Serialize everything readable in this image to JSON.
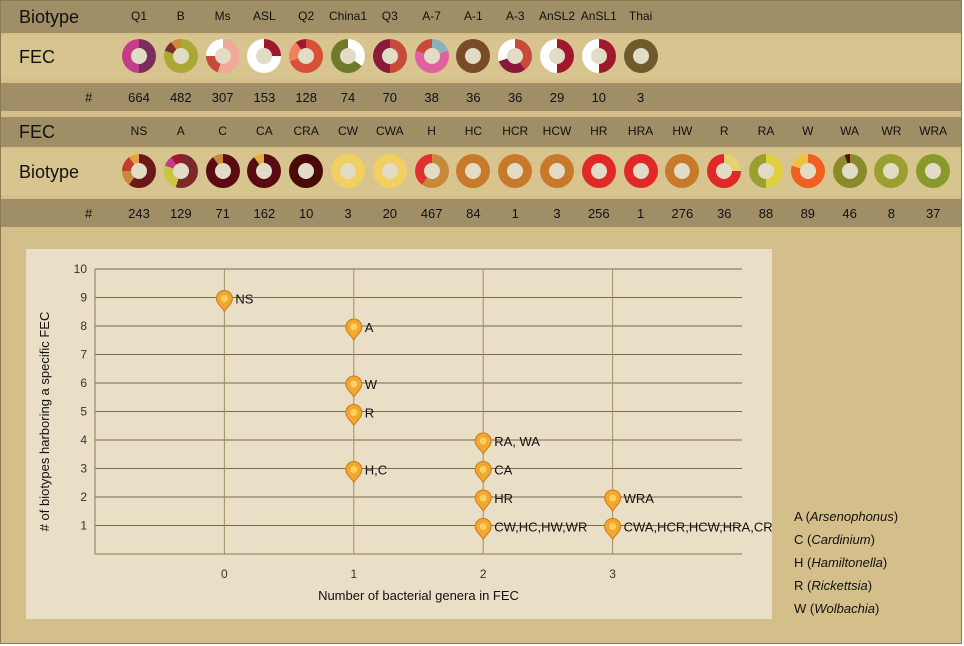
{
  "top_table": {
    "header_label": "Biotype",
    "row_label": "FEC",
    "count_symbol": "#",
    "columns": [
      {
        "label": "Q1",
        "count": "664",
        "segments": [
          [
            "#7a2d5a",
            0.5
          ],
          [
            "#c43d8a",
            0.5
          ]
        ]
      },
      {
        "label": "B",
        "count": "482",
        "segments": [
          [
            "#aaa832",
            0.8
          ],
          [
            "#7a2d2d",
            0.1
          ],
          [
            "#c98a3a",
            0.1
          ]
        ]
      },
      {
        "label": "Ms",
        "count": "307",
        "segments": [
          [
            "#f0a898",
            0.55
          ],
          [
            "#c84a3a",
            0.2
          ],
          [
            "#ffffff",
            0.25
          ]
        ]
      },
      {
        "label": "ASL",
        "count": "153",
        "segments": [
          [
            "#a0182e",
            0.25
          ],
          [
            "#ffffff",
            0.75
          ]
        ]
      },
      {
        "label": "Q2",
        "count": "128",
        "segments": [
          [
            "#d8503a",
            0.7
          ],
          [
            "#f08060",
            0.2
          ],
          [
            "#a0182e",
            0.1
          ]
        ]
      },
      {
        "label": "China1",
        "count": "74",
        "segments": [
          [
            "#ffffff",
            0.35
          ],
          [
            "#6e7a2a",
            0.65
          ]
        ]
      },
      {
        "label": "Q3",
        "count": "70",
        "segments": [
          [
            "#c84a3a",
            0.5
          ],
          [
            "#8a1a3a",
            0.5
          ]
        ]
      },
      {
        "label": "A-7",
        "count": "38",
        "segments": [
          [
            "#8ab0b8",
            0.2
          ],
          [
            "#e060a0",
            0.6
          ],
          [
            "#c84a3a",
            0.2
          ]
        ]
      },
      {
        "label": "A-1",
        "count": "36",
        "segments": [
          [
            "#7a4a2a",
            1.0
          ]
        ]
      },
      {
        "label": "A-3",
        "count": "36",
        "segments": [
          [
            "#c84a3a",
            0.4
          ],
          [
            "#8a1a3a",
            0.3
          ],
          [
            "#ffffff",
            0.3
          ]
        ]
      },
      {
        "label": "AnSL2",
        "count": "29",
        "segments": [
          [
            "#a0182e",
            0.5
          ],
          [
            "#ffffff",
            0.5
          ]
        ]
      },
      {
        "label": "AnSL1",
        "count": "10",
        "segments": [
          [
            "#a0182e",
            0.5
          ],
          [
            "#ffffff",
            0.5
          ]
        ]
      },
      {
        "label": "Thai",
        "count": "3",
        "segments": [
          [
            "#6e5a2a",
            1.0
          ]
        ]
      }
    ]
  },
  "bottom_table": {
    "header_label": "FEC",
    "row_label": "Biotype",
    "count_symbol": "#",
    "columns": [
      {
        "label": "NS",
        "count": "243",
        "segments": [
          [
            "#6a1818",
            0.6
          ],
          [
            "#c88a3a",
            0.15
          ],
          [
            "#c43d2a",
            0.15
          ],
          [
            "#e8a040",
            0.1
          ]
        ]
      },
      {
        "label": "A",
        "count": "129",
        "segments": [
          [
            "#7a2a2a",
            0.55
          ],
          [
            "#c8c840",
            0.25
          ],
          [
            "#c43d8a",
            0.1
          ],
          [
            "#a0182e",
            0.1
          ]
        ]
      },
      {
        "label": "C",
        "count": "71",
        "segments": [
          [
            "#5a0a10",
            0.9
          ],
          [
            "#c88a3a",
            0.1
          ]
        ]
      },
      {
        "label": "CA",
        "count": "162",
        "segments": [
          [
            "#5a0a10",
            0.9
          ],
          [
            "#e0b040",
            0.1
          ]
        ]
      },
      {
        "label": "CRA",
        "count": "10",
        "segments": [
          [
            "#4a0a0a",
            1.0
          ]
        ]
      },
      {
        "label": "CW",
        "count": "3",
        "segments": [
          [
            "#f0d060",
            1.0
          ]
        ]
      },
      {
        "label": "CWA",
        "count": "20",
        "segments": [
          [
            "#f0d060",
            1.0
          ]
        ]
      },
      {
        "label": "H",
        "count": "467",
        "segments": [
          [
            "#c88a3a",
            0.6
          ],
          [
            "#e03030",
            0.4
          ]
        ]
      },
      {
        "label": "HC",
        "count": "84",
        "segments": [
          [
            "#c87a2a",
            1.0
          ]
        ]
      },
      {
        "label": "HCR",
        "count": "1",
        "segments": [
          [
            "#c87a2a",
            1.0
          ]
        ]
      },
      {
        "label": "HCW",
        "count": "3",
        "segments": [
          [
            "#c87a2a",
            1.0
          ]
        ]
      },
      {
        "label": "HR",
        "count": "256",
        "segments": [
          [
            "#e02828",
            1.0
          ]
        ]
      },
      {
        "label": "HRA",
        "count": "1",
        "segments": [
          [
            "#e02828",
            1.0
          ]
        ]
      },
      {
        "label": "HW",
        "count": "276",
        "segments": [
          [
            "#c87a2a",
            1.0
          ]
        ]
      },
      {
        "label": "R",
        "count": "36",
        "segments": [
          [
            "#e8d070",
            0.25
          ],
          [
            "#e02828",
            0.75
          ]
        ]
      },
      {
        "label": "RA",
        "count": "88",
        "segments": [
          [
            "#e0d040",
            0.5
          ],
          [
            "#9aa030",
            0.5
          ]
        ]
      },
      {
        "label": "W",
        "count": "89",
        "segments": [
          [
            "#f06020",
            0.8
          ],
          [
            "#f0c040",
            0.2
          ]
        ]
      },
      {
        "label": "WA",
        "count": "46",
        "segments": [
          [
            "#8a8a2a",
            0.95
          ],
          [
            "#5a0a10",
            0.05
          ]
        ]
      },
      {
        "label": "WR",
        "count": "8",
        "segments": [
          [
            "#9aa030",
            1.0
          ]
        ]
      },
      {
        "label": "WRA",
        "count": "37",
        "segments": [
          [
            "#8a9a2a",
            1.0
          ]
        ]
      }
    ]
  },
  "legend": [
    {
      "code": "A",
      "name": "Arsenophonus"
    },
    {
      "code": "C",
      "name": "Cardinium"
    },
    {
      "code": "H",
      "name": "Hamiltonella"
    },
    {
      "code": "R",
      "name": "Rickettsia"
    },
    {
      "code": "W",
      "name": "Wolbachia"
    }
  ],
  "colors": {
    "marker": "#f0a830",
    "marker_stroke": "#d07810",
    "marker_inner": "#fcd060"
  },
  "chart_data": {
    "type": "scatter",
    "xlabel": "Number of bacterial genera in FEC",
    "ylabel": "# of biotypes harboring a specific FEC",
    "xlim": [
      -1,
      4
    ],
    "ylim": [
      0,
      10
    ],
    "xticks": [
      0,
      1,
      2,
      3
    ],
    "yticks": [
      1,
      2,
      3,
      4,
      5,
      6,
      7,
      8,
      9,
      10
    ],
    "grid": "both",
    "points": [
      {
        "x": 0,
        "y": 9,
        "label": "NS"
      },
      {
        "x": 1,
        "y": 8,
        "label": "A"
      },
      {
        "x": 1,
        "y": 6,
        "label": "W"
      },
      {
        "x": 1,
        "y": 5,
        "label": "R"
      },
      {
        "x": 1,
        "y": 3,
        "label": "H,C"
      },
      {
        "x": 2,
        "y": 4,
        "label": "RA, WA"
      },
      {
        "x": 2,
        "y": 3,
        "label": "CA"
      },
      {
        "x": 2,
        "y": 2,
        "label": "HR"
      },
      {
        "x": 2,
        "y": 1,
        "label": "CW,HC,HW,WR"
      },
      {
        "x": 3,
        "y": 2,
        "label": "WRA"
      },
      {
        "x": 3,
        "y": 1,
        "label": "CWA,HCR,HCW,HRA,CRA"
      }
    ]
  }
}
